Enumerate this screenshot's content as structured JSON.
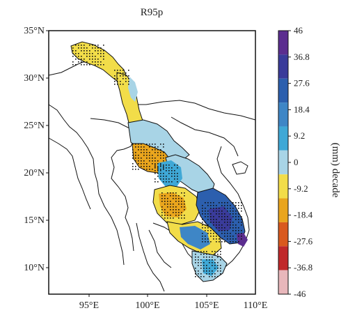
{
  "map": {
    "title": "R95p",
    "lat_ticks": [
      "35°N",
      "30°N",
      "25°N",
      "20°N",
      "15°N",
      "10°N"
    ],
    "lon_ticks": [
      "95°E",
      "100°E",
      "105°E",
      "110°E"
    ]
  },
  "colorbar": {
    "label": "(mm) decade",
    "ticks": [
      "46",
      "36.8",
      "27.6",
      "18.4",
      "9.2",
      "0",
      "-9.2",
      "-18.4",
      "-27.6",
      "-36.8",
      "-46"
    ],
    "colors": [
      "#5b2d8f",
      "#3a3b9a",
      "#2c5fae",
      "#3e86c6",
      "#3fa8d6",
      "#a8d4e6",
      "#f2dd49",
      "#e9a51d",
      "#d9591e",
      "#c0282a",
      "#e8b7bb"
    ]
  },
  "colors": {
    "positive_light": "#a8d4e6",
    "positive_mid": "#3fa8d6",
    "positive_dark": "#2c5fae",
    "negative_light": "#f2dd49",
    "negative_mid": "#e9a51d",
    "negative_dark": "#d9591e",
    "max_purple": "#5b2d8f",
    "border": "#111111"
  }
}
